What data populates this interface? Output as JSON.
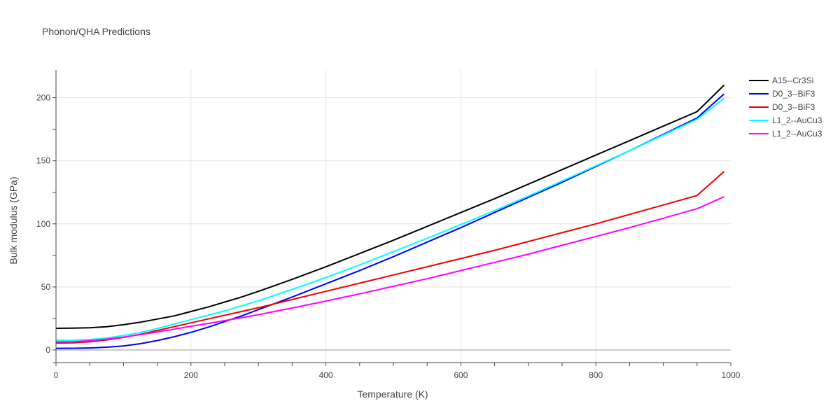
{
  "chart_data": {
    "type": "line",
    "title": "Phonon/QHA Predictions",
    "xlabel": "Temperature (K)",
    "ylabel": "Bulk modulus (GPa)",
    "xlim": [
      0,
      1000
    ],
    "ylim": [
      -10,
      222
    ],
    "x_ticks": [
      0,
      200,
      400,
      600,
      800,
      1000
    ],
    "y_ticks": [
      0,
      50,
      100,
      150,
      200
    ],
    "grid": true,
    "legend_position": "top-right",
    "series": [
      {
        "name": "A15--Cr3Si",
        "color": "#000000",
        "points": [
          [
            0,
            17.2
          ],
          [
            25,
            17.3
          ],
          [
            50,
            17.6
          ],
          [
            75,
            18.5
          ],
          [
            100,
            20
          ],
          [
            125,
            22
          ],
          [
            150,
            24.5
          ],
          [
            175,
            27
          ],
          [
            200,
            30.5
          ],
          [
            225,
            34
          ],
          [
            250,
            38
          ],
          [
            275,
            42
          ],
          [
            300,
            46.5
          ],
          [
            350,
            56
          ],
          [
            400,
            66
          ],
          [
            450,
            76.5
          ],
          [
            500,
            87
          ],
          [
            550,
            98
          ],
          [
            600,
            109
          ],
          [
            650,
            120
          ],
          [
            700,
            131.5
          ],
          [
            750,
            143
          ],
          [
            800,
            154.5
          ],
          [
            850,
            166
          ],
          [
            900,
            177.5
          ],
          [
            950,
            189
          ],
          [
            990,
            210
          ]
        ]
      },
      {
        "name": "D0_3--BiF3",
        "color": "#0000ee",
        "points": [
          [
            0,
            1.3
          ],
          [
            25,
            1.4
          ],
          [
            50,
            1.6
          ],
          [
            75,
            2.2
          ],
          [
            100,
            3.2
          ],
          [
            125,
            5
          ],
          [
            150,
            7.5
          ],
          [
            175,
            10.5
          ],
          [
            200,
            14
          ],
          [
            225,
            18
          ],
          [
            250,
            22.5
          ],
          [
            275,
            27
          ],
          [
            300,
            32
          ],
          [
            350,
            42
          ],
          [
            400,
            52.5
          ],
          [
            450,
            63
          ],
          [
            500,
            74
          ],
          [
            550,
            85.5
          ],
          [
            600,
            97
          ],
          [
            650,
            109
          ],
          [
            700,
            121
          ],
          [
            750,
            133
          ],
          [
            800,
            145.5
          ],
          [
            850,
            158
          ],
          [
            900,
            171
          ],
          [
            950,
            184
          ],
          [
            990,
            203
          ]
        ]
      },
      {
        "name": "D0_3--BiF3",
        "color": "#ee0000",
        "points": [
          [
            0,
            5.5
          ],
          [
            25,
            5.7
          ],
          [
            50,
            6.5
          ],
          [
            75,
            8
          ],
          [
            100,
            10
          ],
          [
            125,
            12.5
          ],
          [
            150,
            15.5
          ],
          [
            175,
            18.5
          ],
          [
            200,
            21.5
          ],
          [
            225,
            24.5
          ],
          [
            250,
            27.5
          ],
          [
            275,
            30.5
          ],
          [
            300,
            33.5
          ],
          [
            350,
            40
          ],
          [
            400,
            46.5
          ],
          [
            450,
            53
          ],
          [
            500,
            59.5
          ],
          [
            550,
            66
          ],
          [
            600,
            72.5
          ],
          [
            650,
            79
          ],
          [
            700,
            86
          ],
          [
            750,
            93
          ],
          [
            800,
            100
          ],
          [
            850,
            107.5
          ],
          [
            900,
            115
          ],
          [
            950,
            122.5
          ],
          [
            990,
            141.5
          ]
        ]
      },
      {
        "name": "L1_2--AuCu3",
        "color": "#00ffff",
        "points": [
          [
            0,
            7.5
          ],
          [
            25,
            7.7
          ],
          [
            50,
            8.3
          ],
          [
            75,
            9.5
          ],
          [
            100,
            11.5
          ],
          [
            125,
            14
          ],
          [
            150,
            17
          ],
          [
            175,
            20.5
          ],
          [
            200,
            24
          ],
          [
            225,
            27.5
          ],
          [
            250,
            31
          ],
          [
            275,
            35
          ],
          [
            300,
            39
          ],
          [
            350,
            48
          ],
          [
            400,
            57.5
          ],
          [
            450,
            67.5
          ],
          [
            500,
            78
          ],
          [
            550,
            88.5
          ],
          [
            600,
            99.5
          ],
          [
            650,
            110.5
          ],
          [
            700,
            122
          ],
          [
            750,
            134
          ],
          [
            800,
            146
          ],
          [
            850,
            158
          ],
          [
            900,
            170.5
          ],
          [
            950,
            183
          ],
          [
            990,
            199.5
          ]
        ]
      },
      {
        "name": "L1_2--AuCu3",
        "color": "#ff00ff",
        "points": [
          [
            0,
            6.3
          ],
          [
            25,
            6.5
          ],
          [
            50,
            7.3
          ],
          [
            75,
            8.6
          ],
          [
            100,
            10.2
          ],
          [
            125,
            12.2
          ],
          [
            150,
            14.3
          ],
          [
            175,
            16.5
          ],
          [
            200,
            18.8
          ],
          [
            225,
            21
          ],
          [
            250,
            23.3
          ],
          [
            275,
            25.6
          ],
          [
            300,
            28
          ],
          [
            350,
            33.3
          ],
          [
            400,
            38.8
          ],
          [
            450,
            44.5
          ],
          [
            500,
            50.5
          ],
          [
            550,
            56.5
          ],
          [
            600,
            63
          ],
          [
            650,
            69.5
          ],
          [
            700,
            76
          ],
          [
            750,
            83
          ],
          [
            800,
            90
          ],
          [
            850,
            97
          ],
          [
            900,
            104.5
          ],
          [
            950,
            112
          ],
          [
            990,
            121.5
          ]
        ]
      }
    ]
  }
}
